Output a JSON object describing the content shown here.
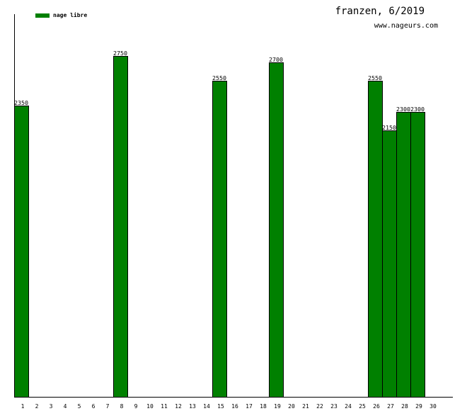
{
  "header": {
    "title": "franzen, 6/2019",
    "site": "www.nageurs.com"
  },
  "legend": {
    "label": "nage libre",
    "color": "#008000"
  },
  "colors": {
    "bar_fill": "#008000",
    "bar_stroke": "#000000",
    "axis": "#000000"
  },
  "chart_data": {
    "type": "bar",
    "title": "franzen, 6/2019",
    "subtitle": "www.nageurs.com",
    "xlabel": "",
    "ylabel": "",
    "legend": [
      "nage libre"
    ],
    "legend_position": "top-left",
    "grid": false,
    "categories": [
      "1",
      "2",
      "3",
      "4",
      "5",
      "6",
      "7",
      "8",
      "9",
      "10",
      "11",
      "12",
      "13",
      "14",
      "15",
      "16",
      "17",
      "18",
      "19",
      "20",
      "21",
      "22",
      "23",
      "24",
      "25",
      "26",
      "27",
      "28",
      "29",
      "30"
    ],
    "series": [
      {
        "name": "nage libre",
        "values": [
          2350,
          0,
          0,
          0,
          0,
          0,
          0,
          2750,
          0,
          0,
          0,
          0,
          0,
          0,
          2550,
          0,
          0,
          0,
          2700,
          0,
          0,
          0,
          0,
          0,
          0,
          2550,
          2150,
          2300,
          2300,
          0
        ]
      }
    ],
    "ylim": [
      0,
      3087
    ]
  }
}
